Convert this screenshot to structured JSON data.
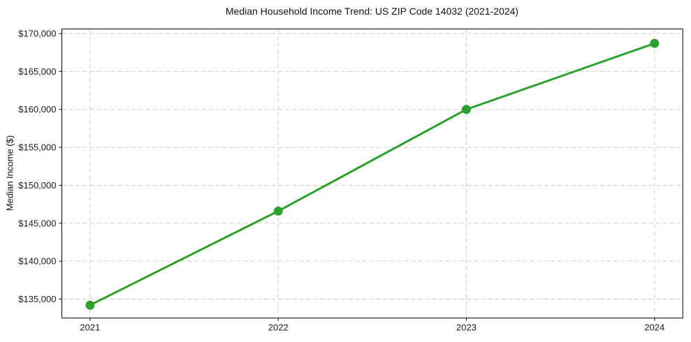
{
  "chart_data": {
    "type": "line",
    "title": "Median Household Income Trend: US ZIP Code 14032 (2021-2024)",
    "xlabel": "",
    "ylabel": "Median Income ($)",
    "x": [
      2021,
      2022,
      2023,
      2024
    ],
    "xtick_labels": [
      "2021",
      "2022",
      "2023",
      "2024"
    ],
    "series": [
      {
        "name": "median_income",
        "values": [
          134200,
          146600,
          160000,
          168700
        ],
        "color": "#2ca02c",
        "marker": "circle"
      }
    ],
    "yticks": [
      135000,
      140000,
      145000,
      150000,
      155000,
      160000,
      165000,
      170000
    ],
    "ytick_labels": [
      "$135,000",
      "$140,000",
      "$145,000",
      "$150,000",
      "$155,000",
      "$160,000",
      "$165,000",
      "$170,000"
    ],
    "xlim": [
      2020.85,
      2024.15
    ],
    "ylim": [
      132500,
      170600
    ],
    "grid": true,
    "grid_style": "dashed",
    "grid_color": "#cdcdcd",
    "axis_color": "#000000",
    "text_color": "#1a1a1a",
    "background": "#ffffff",
    "legend_position": "none"
  }
}
